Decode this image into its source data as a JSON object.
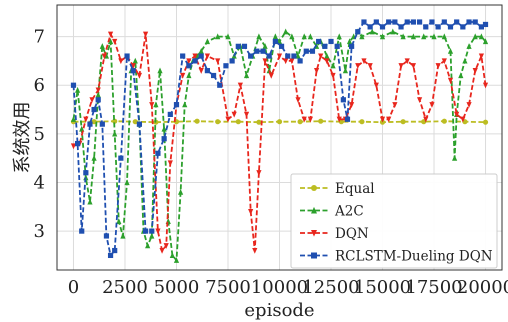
{
  "chart_data": {
    "type": "line",
    "xlabel": "episode",
    "ylabel": "系统效用",
    "xlim": [
      -800,
      20800
    ],
    "ylim": [
      2.2,
      7.65
    ],
    "x_ticks": [
      0,
      2500,
      5000,
      7500,
      10000,
      12500,
      15000,
      17500,
      20000
    ],
    "x_tick_labels": [
      "0",
      "2500",
      "5000",
      "7500",
      "10000",
      "12500",
      "15000",
      "17500",
      "20000"
    ],
    "y_ticks": [
      3,
      4,
      5,
      6,
      7
    ],
    "y_tick_labels": [
      "3",
      "4",
      "5",
      "6",
      "7"
    ],
    "grid": true,
    "legend_position": "lower-right",
    "series": [
      {
        "name": "Equal",
        "color": "#bcbd22",
        "marker": "circle",
        "x": [
          0,
          1000,
          2000,
          3000,
          4000,
          5000,
          6000,
          7000,
          8000,
          9000,
          10000,
          11000,
          12000,
          13000,
          14000,
          15000,
          16000,
          17000,
          18000,
          19000,
          20000
        ],
        "y": [
          5.25,
          5.25,
          5.26,
          5.25,
          5.24,
          5.25,
          5.26,
          5.25,
          5.25,
          5.24,
          5.25,
          5.25,
          5.26,
          5.25,
          5.25,
          5.24,
          5.25,
          5.25,
          5.26,
          5.25,
          5.24
        ]
      },
      {
        "name": "A2C",
        "color": "#2ca02c",
        "marker": "triangle",
        "x": [
          0,
          200,
          400,
          600,
          800,
          1000,
          1200,
          1400,
          1600,
          1800,
          2000,
          2200,
          2400,
          2600,
          2800,
          3000,
          3200,
          3400,
          3600,
          3800,
          4000,
          4200,
          4400,
          4600,
          4800,
          5000,
          5200,
          5400,
          5600,
          5800,
          6000,
          6200,
          6500,
          7000,
          7500,
          7800,
          8100,
          8400,
          8700,
          9000,
          9300,
          9500,
          9800,
          10000,
          10300,
          10600,
          10900,
          11200,
          11500,
          11800,
          12000,
          12300,
          12600,
          12900,
          13200,
          13400,
          13600,
          13800,
          14000,
          14500,
          15000,
          15500,
          16000,
          16500,
          17000,
          17500,
          18000,
          18300,
          18500,
          18600,
          18800,
          19000,
          19200,
          19500,
          19800,
          20000
        ],
        "y": [
          5.3,
          5.9,
          5.1,
          4.1,
          3.6,
          4.5,
          5.8,
          6.8,
          6.6,
          6.9,
          5.0,
          3.2,
          2.9,
          4.0,
          6.3,
          6.5,
          5.2,
          3.0,
          2.7,
          2.9,
          5.6,
          6.3,
          5.1,
          3.2,
          2.5,
          2.4,
          3.8,
          5.6,
          6.2,
          6.5,
          6.6,
          6.7,
          6.9,
          7.0,
          7.0,
          6.6,
          6.8,
          6.2,
          6.6,
          7.0,
          6.8,
          6.3,
          7.0,
          6.9,
          7.1,
          7.0,
          6.6,
          7.0,
          7.0,
          6.8,
          6.9,
          6.6,
          6.4,
          7.0,
          6.3,
          6.9,
          7.0,
          7.1,
          7.0,
          7.1,
          7.0,
          7.1,
          7.0,
          7.0,
          7.0,
          7.0,
          7.0,
          6.7,
          4.5,
          5.4,
          6.2,
          6.5,
          6.8,
          7.0,
          7.0,
          6.9
        ]
      },
      {
        "name": "DQN",
        "color": "#e8261d",
        "marker": "triangle-down",
        "x": [
          0,
          300,
          600,
          900,
          1200,
          1500,
          1800,
          2000,
          2300,
          2600,
          2900,
          3200,
          3500,
          3800,
          4100,
          4300,
          4500,
          4700,
          5000,
          5300,
          5600,
          5900,
          6200,
          6500,
          7000,
          7500,
          7800,
          8100,
          8400,
          8600,
          8800,
          9000,
          9300,
          9600,
          10000,
          10300,
          10600,
          10900,
          11200,
          11500,
          11800,
          12000,
          12300,
          12600,
          12900,
          13200,
          13500,
          13800,
          14100,
          14400,
          14700,
          15000,
          15300,
          15600,
          15900,
          16200,
          16500,
          16800,
          17100,
          17400,
          17700,
          18000,
          18300,
          18600,
          18900,
          19200,
          19500,
          19800,
          20000
        ],
        "y": [
          4.75,
          4.8,
          5.3,
          5.7,
          5.9,
          6.6,
          7.05,
          6.9,
          6.5,
          6.6,
          6.4,
          6.2,
          7.05,
          5.6,
          3.0,
          2.6,
          2.7,
          4.4,
          5.6,
          6.2,
          6.5,
          6.6,
          6.3,
          6.6,
          6.5,
          5.3,
          5.4,
          6.0,
          5.4,
          3.4,
          2.6,
          4.2,
          6.5,
          6.2,
          6.6,
          6.5,
          6.5,
          5.7,
          5.3,
          5.3,
          6.3,
          6.6,
          6.5,
          6.2,
          5.3,
          5.3,
          5.6,
          6.4,
          6.5,
          6.4,
          6.0,
          5.3,
          5.3,
          5.6,
          6.4,
          6.5,
          6.4,
          5.7,
          5.3,
          5.6,
          6.4,
          6.5,
          6.1,
          5.4,
          5.3,
          5.6,
          6.3,
          6.6,
          6.0
        ]
      },
      {
        "name": "RCLSTM-Dueling DQN",
        "color": "#1f4fb0",
        "marker": "square",
        "x": [
          0,
          200,
          400,
          600,
          800,
          1000,
          1200,
          1400,
          1600,
          1800,
          2000,
          2300,
          2600,
          2900,
          3200,
          3500,
          3800,
          4100,
          4400,
          4700,
          5000,
          5300,
          5600,
          5900,
          6200,
          6500,
          6800,
          7100,
          7400,
          7700,
          8000,
          8300,
          8600,
          8900,
          9200,
          9500,
          9800,
          10100,
          10400,
          10700,
          11000,
          11300,
          11600,
          11900,
          12200,
          12500,
          12800,
          13100,
          13300,
          13500,
          13800,
          14100,
          14400,
          14700,
          15000,
          15300,
          15600,
          15900,
          16200,
          16500,
          16800,
          17100,
          17400,
          17700,
          18000,
          18300,
          18600,
          18900,
          19200,
          19500,
          19800,
          20000
        ],
        "y": [
          6.0,
          4.8,
          3.0,
          4.2,
          5.2,
          5.5,
          5.7,
          5.2,
          2.9,
          2.5,
          2.6,
          4.5,
          6.6,
          6.3,
          5.2,
          3.0,
          3.0,
          4.6,
          4.9,
          5.4,
          5.6,
          6.6,
          6.4,
          6.5,
          6.6,
          6.3,
          6.2,
          6.0,
          6.4,
          6.5,
          6.8,
          6.8,
          6.6,
          6.7,
          6.7,
          6.6,
          6.9,
          6.8,
          6.6,
          6.6,
          6.5,
          6.7,
          6.7,
          6.9,
          6.8,
          6.9,
          6.8,
          5.7,
          5.3,
          6.8,
          7.1,
          7.3,
          7.2,
          7.3,
          7.2,
          7.3,
          7.3,
          7.2,
          7.3,
          7.3,
          7.3,
          7.2,
          7.3,
          7.2,
          7.3,
          7.2,
          7.3,
          7.2,
          7.3,
          7.3,
          7.2,
          7.25
        ]
      }
    ]
  }
}
